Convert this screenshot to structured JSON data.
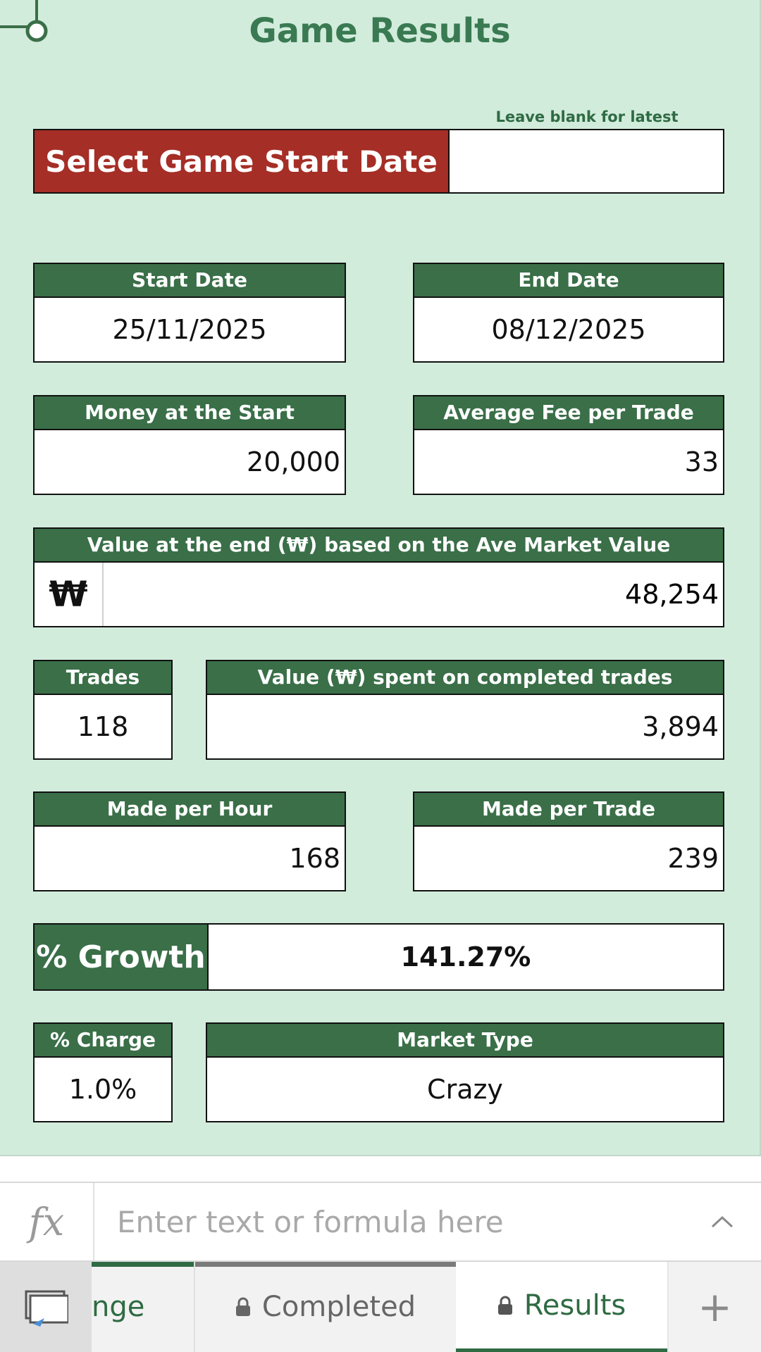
{
  "sheet": {
    "title": "Game Results",
    "hint": "Leave blank for latest",
    "select_date_label": "Select Game Start Date",
    "select_date_value": "",
    "start_date": {
      "label": "Start Date",
      "value": "25/11/2025"
    },
    "end_date": {
      "label": "End Date",
      "value": "08/12/2025"
    },
    "money_start": {
      "label": "Money at the Start",
      "value": "20,000"
    },
    "avg_fee": {
      "label": "Average Fee per Trade",
      "value": "33"
    },
    "value_end": {
      "label": "Value at the end (₩) based on the Ave Market Value",
      "symbol": "₩",
      "value": "48,254"
    },
    "trades": {
      "label": "Trades",
      "value": "118"
    },
    "value_spent": {
      "label": "Value (₩) spent on completed trades",
      "value": "3,894"
    },
    "made_hour": {
      "label": "Made per Hour",
      "value": "168"
    },
    "made_trade": {
      "label": "Made per Trade",
      "value": "239"
    },
    "growth": {
      "label": "% Growth",
      "value": "141.27%"
    },
    "charge": {
      "label": "% Charge",
      "value": "1.0%"
    },
    "market": {
      "label": "Market Type",
      "value": "Crazy"
    }
  },
  "formula_bar": {
    "fx_label": "fx",
    "placeholder": "Enter text or formula here",
    "value": ""
  },
  "tabs": [
    {
      "label": "nge",
      "locked": false,
      "color": "#2f6b43"
    },
    {
      "label": "Completed",
      "locked": true,
      "color": "#7a7a7a"
    },
    {
      "label": "Results",
      "locked": true,
      "active": true
    }
  ],
  "add_tab_label": "+",
  "colors": {
    "sheet_bg": "#d2ecdc",
    "header_green": "#3a6f48",
    "select_red": "#a52e26",
    "title_green": "#3a7a52"
  }
}
